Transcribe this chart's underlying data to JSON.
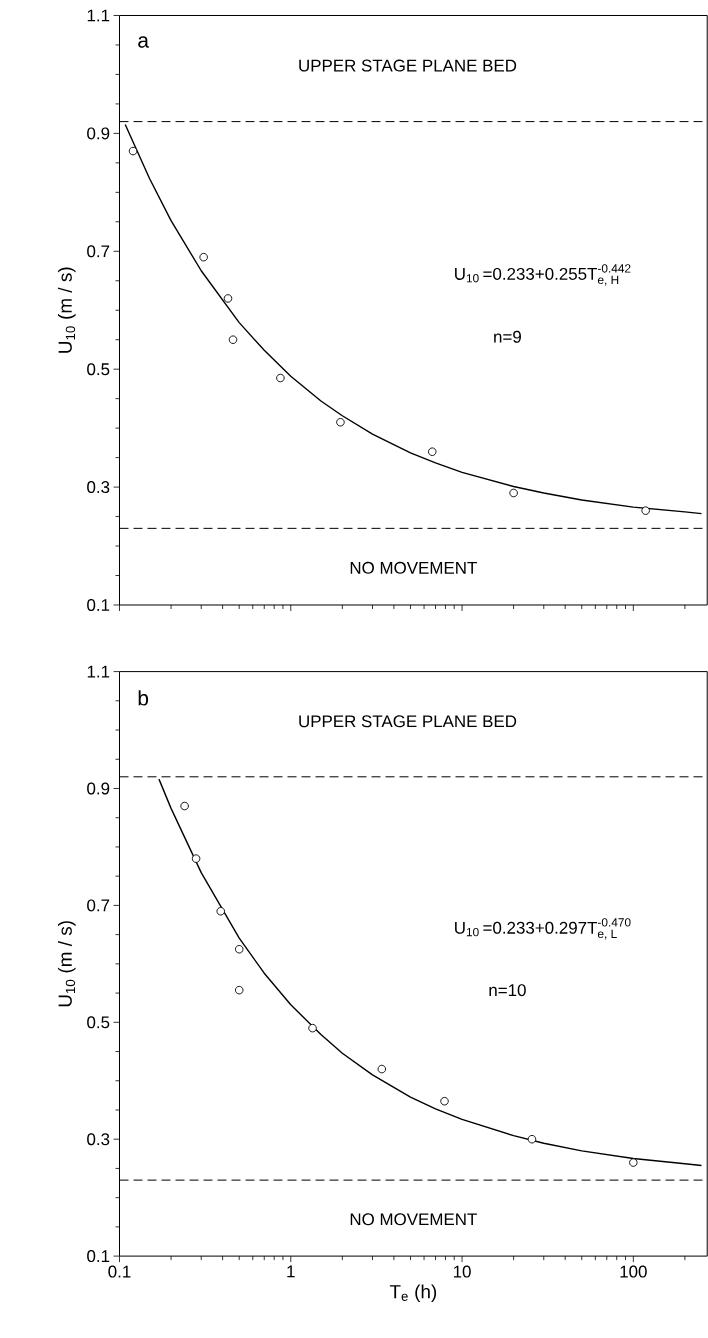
{
  "chart_data": [
    {
      "type": "scatter",
      "log": "x",
      "xlim": [
        0.1,
        270
      ],
      "ylim": [
        0.1,
        1.1
      ],
      "xticks": [
        0.1,
        1,
        10,
        100
      ],
      "yticks": [
        0.1,
        0.3,
        0.5,
        0.7,
        0.9,
        1.1
      ],
      "tick_labels": "y",
      "ylabel": "U$_{10}$ (m / s)",
      "annotations": [
        "a",
        "UPPER STAGE PLANE BED",
        "\\text{U}_{\\text{10}}\\,\\text{=0.233+0.255T}_{\\text{e, H}}^{\\text{-0.442}}",
        "n=9",
        "NO MOVEMENT"
      ],
      "ref_lines": [
        {
          "axis": "y",
          "value": 0.92,
          "color": "#000000",
          "line_style": "dashed"
        },
        {
          "axis": "y",
          "value": 0.23,
          "color": "#000000",
          "line_style": "dashed"
        }
      ],
      "series": [
        {
          "marker": "circle",
          "color": "#000000",
          "x": [
            0.12,
            0.31,
            0.43,
            0.46,
            0.87,
            1.95,
            6.7,
            20,
            118
          ],
          "values": [
            0.87,
            0.69,
            0.62,
            0.55,
            0.485,
            0.41,
            0.36,
            0.29,
            0.26
          ]
        },
        {
          "type": "line",
          "marker": "none",
          "line_style": "solid",
          "color": "#000000",
          "x": [
            0.108,
            0.15,
            0.2,
            0.3,
            0.5,
            0.7,
            1,
            1.5,
            2,
            3,
            5,
            7,
            10,
            20,
            30,
            50,
            100,
            200,
            250
          ],
          "values": [
            0.915,
            0.823,
            0.752,
            0.667,
            0.579,
            0.532,
            0.488,
            0.446,
            0.421,
            0.39,
            0.358,
            0.341,
            0.325,
            0.301,
            0.29,
            0.278,
            0.266,
            0.258,
            0.255
          ]
        }
      ]
    },
    {
      "type": "scatter",
      "log": "x",
      "xlim": [
        0.1,
        270
      ],
      "ylim": [
        0.1,
        1.1
      ],
      "xticks": [
        0.1,
        1,
        10,
        100
      ],
      "yticks": [
        0.1,
        0.3,
        0.5,
        0.7,
        0.9,
        1.1
      ],
      "xlabel": "T$_{e}$ (h)",
      "ylabel": "U$_{10}$ (m / s)",
      "annotations": [
        "b",
        "UPPER STAGE PLANE BED",
        "\\text{U}_{\\text{10}}\\,\\text{=0.233+0.297T}_{\\text{e, L}}^{\\text{-0.470}}",
        "n=10",
        "NO MOVEMENT"
      ],
      "ref_lines": [
        {
          "axis": "y",
          "value": 0.92,
          "color": "#000000",
          "line_style": "dashed"
        },
        {
          "axis": "y",
          "value": 0.23,
          "color": "#000000",
          "line_style": "dashed"
        }
      ],
      "series": [
        {
          "marker": "circle",
          "color": "#000000",
          "x": [
            0.24,
            0.28,
            0.39,
            0.5,
            0.5,
            1.34,
            3.4,
            7.9,
            25.6,
            100
          ],
          "values": [
            0.87,
            0.78,
            0.69,
            0.625,
            0.555,
            0.49,
            0.42,
            0.365,
            0.3,
            0.26
          ]
        },
        {
          "type": "line",
          "marker": "none",
          "line_style": "solid",
          "color": "#000000",
          "x": [
            0.17,
            0.2,
            0.3,
            0.5,
            0.7,
            1,
            1.5,
            2,
            3,
            5,
            7,
            10,
            20,
            30,
            50,
            100,
            200,
            250
          ],
          "values": [
            0.916,
            0.866,
            0.756,
            0.644,
            0.584,
            0.53,
            0.479,
            0.447,
            0.41,
            0.372,
            0.352,
            0.334,
            0.306,
            0.293,
            0.28,
            0.267,
            0.258,
            0.255
          ]
        }
      ]
    }
  ]
}
